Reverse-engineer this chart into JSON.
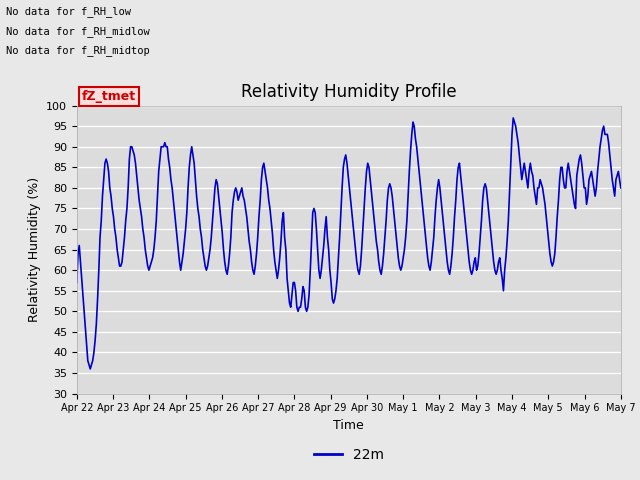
{
  "title": "Relativity Humidity Profile",
  "xlabel": "Time",
  "ylabel": "Relativity Humidity (%)",
  "ylim": [
    30,
    100
  ],
  "yticks": [
    30,
    35,
    40,
    45,
    50,
    55,
    60,
    65,
    70,
    75,
    80,
    85,
    90,
    95,
    100
  ],
  "legend_label": "22m",
  "legend_color": "#0000cc",
  "line_color": "#0000cc",
  "line_width": 1.2,
  "fig_bg_color": "#e8e8e8",
  "plot_bg_color": "#dcdcdc",
  "annotations": [
    "No data for f_RH_low",
    "No data for f_RH_midlow",
    "No data for f_RH_midtop"
  ],
  "legend_box_facecolor": "#ffdddd",
  "legend_box_edgecolor": "#cc0000",
  "legend_box_text": "fZ_tmet",
  "legend_box_textcolor": "#cc0000",
  "x_tick_labels": [
    "Apr 22",
    "Apr 23",
    "Apr 24",
    "Apr 25",
    "Apr 26",
    "Apr 27",
    "Apr 28",
    "Apr 29",
    "Apr 30",
    "May 1",
    "May 2",
    "May 3",
    "May 4",
    "May 5",
    "May 6",
    "May 7"
  ],
  "rh_values": [
    57,
    64,
    66,
    62,
    58,
    54,
    50,
    46,
    42,
    38,
    37,
    36,
    37,
    38,
    40,
    43,
    47,
    53,
    60,
    68,
    72,
    78,
    82,
    86,
    87,
    86,
    84,
    80,
    78,
    75,
    73,
    70,
    68,
    65,
    63,
    61,
    61,
    62,
    65,
    68,
    72,
    75,
    80,
    87,
    90,
    90,
    89,
    88,
    86,
    83,
    80,
    77,
    75,
    73,
    70,
    68,
    65,
    63,
    61,
    60,
    61,
    62,
    63,
    65,
    68,
    72,
    78,
    84,
    87,
    90,
    90,
    90,
    91,
    90,
    90,
    87,
    85,
    82,
    80,
    77,
    74,
    71,
    68,
    65,
    62,
    60,
    62,
    64,
    67,
    70,
    74,
    80,
    85,
    88,
    90,
    88,
    86,
    82,
    78,
    75,
    73,
    70,
    68,
    65,
    63,
    61,
    60,
    61,
    63,
    65,
    68,
    72,
    76,
    80,
    82,
    81,
    78,
    75,
    72,
    69,
    65,
    62,
    60,
    59,
    61,
    64,
    68,
    74,
    77,
    79,
    80,
    79,
    77,
    78,
    79,
    80,
    78,
    77,
    75,
    73,
    70,
    67,
    65,
    62,
    60,
    59,
    61,
    64,
    68,
    73,
    77,
    82,
    85,
    86,
    84,
    82,
    80,
    77,
    75,
    72,
    69,
    65,
    62,
    60,
    58,
    60,
    63,
    67,
    72,
    74,
    68,
    65,
    58,
    55,
    52,
    51,
    54,
    57,
    57,
    55,
    51,
    50,
    51,
    51,
    53,
    56,
    55,
    51,
    50,
    51,
    54,
    60,
    67,
    74,
    75,
    74,
    70,
    65,
    60,
    58,
    60,
    63,
    66,
    70,
    73,
    68,
    65,
    60,
    57,
    53,
    52,
    53,
    55,
    58,
    63,
    68,
    74,
    80,
    85,
    87,
    88,
    86,
    83,
    80,
    77,
    74,
    71,
    68,
    65,
    62,
    60,
    59,
    61,
    65,
    70,
    75,
    80,
    84,
    86,
    85,
    82,
    79,
    76,
    73,
    70,
    67,
    65,
    62,
    60,
    59,
    61,
    64,
    68,
    72,
    77,
    80,
    81,
    80,
    78,
    75,
    72,
    69,
    66,
    63,
    61,
    60,
    61,
    63,
    65,
    68,
    72,
    78,
    84,
    89,
    93,
    96,
    95,
    92,
    90,
    87,
    84,
    81,
    78,
    75,
    72,
    69,
    66,
    63,
    61,
    60,
    62,
    65,
    68,
    73,
    77,
    80,
    82,
    80,
    77,
    74,
    71,
    68,
    65,
    62,
    60,
    59,
    61,
    64,
    68,
    73,
    77,
    82,
    85,
    86,
    83,
    80,
    77,
    74,
    71,
    68,
    65,
    62,
    60,
    59,
    60,
    62,
    63,
    60,
    61,
    64,
    68,
    72,
    77,
    80,
    81,
    80,
    77,
    74,
    71,
    68,
    65,
    62,
    60,
    59,
    60,
    62,
    63,
    60,
    58,
    55,
    60,
    63,
    67,
    72,
    79,
    86,
    93,
    97,
    96,
    95,
    93,
    91,
    88,
    85,
    82,
    84,
    86,
    84,
    82,
    80,
    84,
    86,
    84,
    83,
    80,
    78,
    76,
    80,
    80,
    82,
    81,
    80,
    78,
    76,
    73,
    70,
    67,
    64,
    62,
    61,
    62,
    64,
    68,
    73,
    77,
    82,
    85,
    85,
    82,
    80,
    80,
    84,
    86,
    84,
    82,
    80,
    78,
    76,
    75,
    83,
    85,
    87,
    88,
    86,
    83,
    80,
    80,
    76,
    78,
    82,
    83,
    84,
    82,
    80,
    78,
    80,
    84,
    87,
    90,
    92,
    94,
    95,
    93,
    93,
    93,
    91,
    88,
    85,
    82,
    80,
    78,
    82,
    83,
    84,
    82,
    80
  ]
}
